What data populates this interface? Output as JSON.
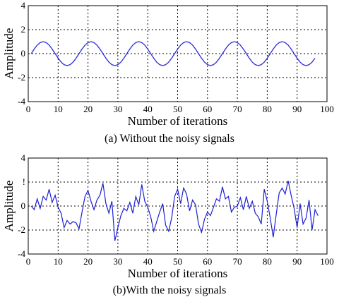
{
  "chart_data": [
    {
      "type": "line",
      "caption": "(a) Without the noisy signals",
      "xlabel": "Number of iterations",
      "ylabel": "Amplitude",
      "xlim": [
        0,
        100
      ],
      "ylim": [
        -4,
        4
      ],
      "xticks": [
        "0",
        "10",
        "20",
        "30",
        "40",
        "50",
        "60",
        "70",
        "80",
        "90",
        "100"
      ],
      "yticks": [
        "4",
        "2",
        "0",
        "-2",
        "-4"
      ],
      "grid": true,
      "line_color": "#2b2bdc",
      "series": [
        {
          "x": [
            1,
            2,
            3,
            4,
            5,
            6,
            7,
            8,
            9,
            10,
            11,
            12,
            13,
            14,
            15,
            16,
            17,
            18,
            19,
            20,
            21,
            22,
            23,
            24,
            25,
            26,
            27,
            28,
            29,
            30,
            31,
            32,
            33,
            34,
            35,
            36,
            37,
            38,
            39,
            40,
            41,
            42,
            43,
            44,
            45,
            46,
            47,
            48,
            49,
            50,
            51,
            52,
            53,
            54,
            55,
            56,
            57,
            58,
            59,
            60,
            61,
            62,
            63,
            64,
            65,
            66,
            67,
            68,
            69,
            70,
            71,
            72,
            73,
            74,
            75,
            76,
            77,
            78,
            79,
            80,
            81,
            82,
            83,
            84,
            85,
            86,
            87,
            88,
            89,
            90,
            91,
            92,
            93,
            94,
            95,
            96
          ],
          "y": [
            0.0,
            0.38,
            0.71,
            0.92,
            1.0,
            0.92,
            0.71,
            0.38,
            0.0,
            -0.38,
            -0.71,
            -0.92,
            -1.0,
            -0.92,
            -0.71,
            -0.38,
            0.0,
            0.38,
            0.71,
            0.92,
            1.0,
            0.92,
            0.71,
            0.38,
            0.0,
            -0.38,
            -0.71,
            -0.92,
            -1.0,
            -0.92,
            -0.71,
            -0.38,
            0.0,
            0.38,
            0.71,
            0.92,
            1.0,
            0.92,
            0.71,
            0.38,
            0.0,
            -0.38,
            -0.71,
            -0.92,
            -1.0,
            -0.92,
            -0.71,
            -0.38,
            0.0,
            0.38,
            0.71,
            0.92,
            1.0,
            0.92,
            0.71,
            0.38,
            0.0,
            -0.38,
            -0.71,
            -0.92,
            -1.0,
            -0.92,
            -0.71,
            -0.38,
            0.0,
            0.38,
            0.71,
            0.92,
            1.0,
            0.92,
            0.71,
            0.38,
            0.0,
            -0.38,
            -0.71,
            -0.92,
            -1.0,
            -0.92,
            -0.71,
            -0.38,
            0.0,
            0.38,
            0.71,
            0.92,
            1.0,
            0.92,
            0.71,
            0.38,
            0.0,
            -0.38,
            -0.71,
            -0.92,
            -1.0,
            -0.92,
            -0.71,
            -0.38
          ]
        }
      ]
    },
    {
      "type": "line",
      "caption": "(b)With the noisy signals",
      "xlabel": "Number of iterations",
      "ylabel": "Amplitude",
      "xlim": [
        0,
        100
      ],
      "ylim": [
        -4,
        4
      ],
      "xticks": [
        "0",
        "10",
        "20",
        "30",
        "40",
        "50",
        "60",
        "70",
        "80",
        "90",
        "100"
      ],
      "yticks": [
        "4",
        "!",
        "0",
        "-2",
        "-4"
      ],
      "grid": true,
      "line_color": "#1f1fd6",
      "series": [
        {
          "x": [
            1,
            2,
            3,
            4,
            5,
            6,
            7,
            8,
            9,
            10,
            11,
            12,
            13,
            14,
            15,
            16,
            17,
            18,
            19,
            20,
            21,
            22,
            23,
            24,
            25,
            26,
            27,
            28,
            29,
            30,
            31,
            32,
            33,
            34,
            35,
            36,
            37,
            38,
            39,
            40,
            41,
            42,
            43,
            44,
            45,
            46,
            47,
            48,
            49,
            50,
            51,
            52,
            53,
            54,
            55,
            56,
            57,
            58,
            59,
            60,
            61,
            62,
            63,
            64,
            65,
            66,
            67,
            68,
            69,
            70,
            71,
            72,
            73,
            74,
            75,
            76,
            77,
            78,
            79,
            80,
            81,
            82,
            83,
            84,
            85,
            86,
            87,
            88,
            89,
            90,
            91,
            92,
            93,
            94,
            95,
            96,
            97
          ],
          "y": [
            0.0,
            -0.3,
            0.6,
            -0.2,
            0.8,
            0.5,
            1.4,
            0.3,
            0.9,
            -0.1,
            -0.6,
            -1.8,
            -1.2,
            -1.5,
            -1.3,
            -1.4,
            -1.9,
            -0.5,
            0.8,
            1.3,
            0.4,
            -0.3,
            0.5,
            0.9,
            1.9,
            0.2,
            -0.6,
            0.4,
            -2.9,
            -1.8,
            -0.8,
            -0.2,
            -0.4,
            0.3,
            -0.6,
            0.8,
            0.1,
            1.8,
            0.4,
            -0.1,
            -0.9,
            -2.1,
            -1.3,
            -0.5,
            0.2,
            -1.6,
            -2.1,
            -1.0,
            0.8,
            1.4,
            0.2,
            1.5,
            1.0,
            -0.4,
            0.5,
            0.1,
            -1.5,
            -2.2,
            -1.1,
            -0.5,
            -0.8,
            -0.1,
            0.6,
            0.4,
            1.6,
            0.6,
            0.8,
            -0.5,
            -0.1,
            0.0,
            0.7,
            -0.3,
            0.8,
            -0.2,
            0.4,
            -0.6,
            -0.9,
            -1.5,
            1.4,
            0.4,
            -1.0,
            -2.6,
            -0.7,
            1.1,
            1.5,
            1.0,
            2.1,
            0.9,
            -0.2,
            -1.8,
            0.2,
            -1.5,
            -1.0,
            0.5,
            -2.0,
            -0.3,
            -0.8
          ]
        }
      ]
    }
  ]
}
